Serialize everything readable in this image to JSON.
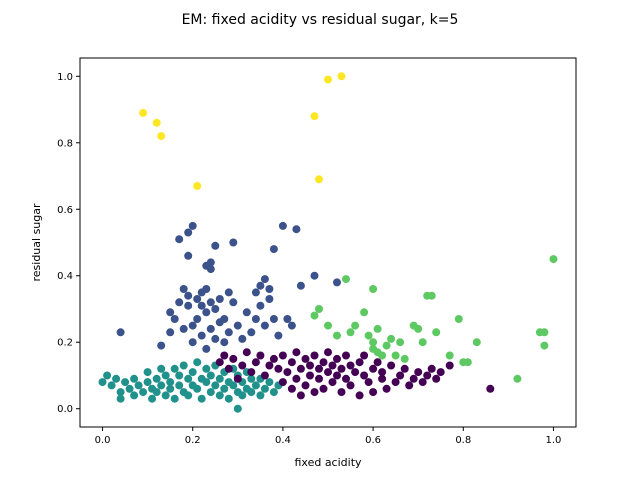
{
  "chart_data": {
    "type": "scatter",
    "title": "EM: fixed acidity vs residual sugar, k=5",
    "xlabel": "fixed acidity",
    "ylabel": "residual sugar",
    "xlim": [
      -0.05,
      1.05
    ],
    "ylim": [
      -0.055,
      1.055
    ],
    "xticks": [
      "0.0",
      "0.2",
      "0.4",
      "0.6",
      "0.8",
      "1.0"
    ],
    "yticks": [
      "0.0",
      "0.2",
      "0.4",
      "0.6",
      "0.8",
      "1.0"
    ],
    "grid": false,
    "legend": "none",
    "series": [
      {
        "color": "#fde725",
        "points": [
          [
            0.09,
            0.89
          ],
          [
            0.12,
            0.86
          ],
          [
            0.13,
            0.82
          ],
          [
            0.21,
            0.67
          ],
          [
            0.47,
            0.88
          ],
          [
            0.48,
            0.69
          ],
          [
            0.5,
            0.99
          ],
          [
            0.53,
            1.0
          ]
        ]
      },
      {
        "color": "#3b528b",
        "points": [
          [
            0.04,
            0.23
          ],
          [
            0.13,
            0.19
          ],
          [
            0.15,
            0.29
          ],
          [
            0.15,
            0.23
          ],
          [
            0.16,
            0.27
          ],
          [
            0.17,
            0.51
          ],
          [
            0.17,
            0.32
          ],
          [
            0.18,
            0.36
          ],
          [
            0.18,
            0.24
          ],
          [
            0.19,
            0.53
          ],
          [
            0.19,
            0.46
          ],
          [
            0.19,
            0.34
          ],
          [
            0.19,
            0.31
          ],
          [
            0.2,
            0.55
          ],
          [
            0.2,
            0.25
          ],
          [
            0.2,
            0.2
          ],
          [
            0.21,
            0.33
          ],
          [
            0.21,
            0.27
          ],
          [
            0.22,
            0.35
          ],
          [
            0.22,
            0.31
          ],
          [
            0.22,
            0.22
          ],
          [
            0.23,
            0.43
          ],
          [
            0.23,
            0.36
          ],
          [
            0.23,
            0.29
          ],
          [
            0.23,
            0.18
          ],
          [
            0.24,
            0.44
          ],
          [
            0.24,
            0.42
          ],
          [
            0.24,
            0.32
          ],
          [
            0.24,
            0.24
          ],
          [
            0.25,
            0.49
          ],
          [
            0.25,
            0.3
          ],
          [
            0.25,
            0.21
          ],
          [
            0.26,
            0.33
          ],
          [
            0.26,
            0.26
          ],
          [
            0.27,
            0.27
          ],
          [
            0.27,
            0.2
          ],
          [
            0.28,
            0.35
          ],
          [
            0.28,
            0.23
          ],
          [
            0.29,
            0.5
          ],
          [
            0.29,
            0.32
          ],
          [
            0.3,
            0.25
          ],
          [
            0.31,
            0.21
          ],
          [
            0.32,
            0.29
          ],
          [
            0.33,
            0.23
          ],
          [
            0.34,
            0.35
          ],
          [
            0.34,
            0.27
          ],
          [
            0.35,
            0.37
          ],
          [
            0.35,
            0.31
          ],
          [
            0.36,
            0.39
          ],
          [
            0.36,
            0.25
          ],
          [
            0.37,
            0.36
          ],
          [
            0.37,
            0.33
          ],
          [
            0.38,
            0.48
          ],
          [
            0.38,
            0.27
          ],
          [
            0.39,
            0.22
          ],
          [
            0.4,
            0.55
          ],
          [
            0.41,
            0.27
          ],
          [
            0.43,
            0.54
          ],
          [
            0.42,
            0.25
          ],
          [
            0.44,
            0.37
          ],
          [
            0.47,
            0.4
          ],
          [
            0.52,
            0.38
          ]
        ]
      },
      {
        "color": "#5ec962",
        "points": [
          [
            0.47,
            0.28
          ],
          [
            0.48,
            0.3
          ],
          [
            0.5,
            0.25
          ],
          [
            0.52,
            0.22
          ],
          [
            0.54,
            0.39
          ],
          [
            0.55,
            0.23
          ],
          [
            0.56,
            0.25
          ],
          [
            0.58,
            0.29
          ],
          [
            0.59,
            0.22
          ],
          [
            0.6,
            0.36
          ],
          [
            0.6,
            0.2
          ],
          [
            0.6,
            0.18
          ],
          [
            0.61,
            0.24
          ],
          [
            0.61,
            0.17
          ],
          [
            0.62,
            0.16
          ],
          [
            0.63,
            0.19
          ],
          [
            0.64,
            0.21
          ],
          [
            0.65,
            0.16
          ],
          [
            0.66,
            0.2
          ],
          [
            0.67,
            0.15
          ],
          [
            0.69,
            0.25
          ],
          [
            0.7,
            0.24
          ],
          [
            0.71,
            0.2
          ],
          [
            0.72,
            0.34
          ],
          [
            0.73,
            0.34
          ],
          [
            0.74,
            0.23
          ],
          [
            0.77,
            0.16
          ],
          [
            0.79,
            0.27
          ],
          [
            0.8,
            0.14
          ],
          [
            0.81,
            0.14
          ],
          [
            0.83,
            0.2
          ],
          [
            0.92,
            0.09
          ],
          [
            0.97,
            0.23
          ],
          [
            0.98,
            0.23
          ],
          [
            0.98,
            0.19
          ],
          [
            1.0,
            0.45
          ]
        ]
      },
      {
        "color": "#21918c",
        "points": [
          [
            0.0,
            0.08
          ],
          [
            0.01,
            0.1
          ],
          [
            0.02,
            0.07
          ],
          [
            0.03,
            0.09
          ],
          [
            0.04,
            0.05
          ],
          [
            0.04,
            0.03
          ],
          [
            0.05,
            0.08
          ],
          [
            0.06,
            0.06
          ],
          [
            0.07,
            0.09
          ],
          [
            0.07,
            0.04
          ],
          [
            0.08,
            0.07
          ],
          [
            0.09,
            0.05
          ],
          [
            0.1,
            0.11
          ],
          [
            0.1,
            0.08
          ],
          [
            0.11,
            0.06
          ],
          [
            0.11,
            0.03
          ],
          [
            0.12,
            0.09
          ],
          [
            0.12,
            0.05
          ],
          [
            0.13,
            0.07
          ],
          [
            0.13,
            0.12
          ],
          [
            0.14,
            0.04
          ],
          [
            0.14,
            0.1
          ],
          [
            0.15,
            0.06
          ],
          [
            0.15,
            0.08
          ],
          [
            0.16,
            0.12
          ],
          [
            0.16,
            0.03
          ],
          [
            0.17,
            0.07
          ],
          [
            0.17,
            0.1
          ],
          [
            0.18,
            0.05
          ],
          [
            0.18,
            0.13
          ],
          [
            0.19,
            0.09
          ],
          [
            0.19,
            0.04
          ],
          [
            0.2,
            0.07
          ],
          [
            0.2,
            0.11
          ],
          [
            0.21,
            0.06
          ],
          [
            0.21,
            0.14
          ],
          [
            0.22,
            0.03
          ],
          [
            0.22,
            0.09
          ],
          [
            0.23,
            0.08
          ],
          [
            0.23,
            0.12
          ],
          [
            0.24,
            0.05
          ],
          [
            0.24,
            0.1
          ],
          [
            0.25,
            0.07
          ],
          [
            0.25,
            0.13
          ],
          [
            0.26,
            0.04
          ],
          [
            0.26,
            0.09
          ],
          [
            0.27,
            0.11
          ],
          [
            0.27,
            0.06
          ],
          [
            0.28,
            0.08
          ],
          [
            0.28,
            0.03
          ],
          [
            0.29,
            0.12
          ],
          [
            0.29,
            0.07
          ],
          [
            0.3,
            0.05
          ],
          [
            0.3,
            0.1
          ],
          [
            0.31,
            0.08
          ],
          [
            0.31,
            0.04
          ],
          [
            0.32,
            0.06
          ],
          [
            0.32,
            0.11
          ],
          [
            0.33,
            0.09
          ],
          [
            0.33,
            0.05
          ],
          [
            0.34,
            0.07
          ],
          [
            0.35,
            0.04
          ],
          [
            0.35,
            0.09
          ],
          [
            0.36,
            0.06
          ],
          [
            0.37,
            0.08
          ],
          [
            0.38,
            0.05
          ],
          [
            0.39,
            0.07
          ],
          [
            0.3,
            0.0
          ]
        ]
      },
      {
        "color": "#440154",
        "points": [
          [
            0.26,
            0.14
          ],
          [
            0.27,
            0.16
          ],
          [
            0.28,
            0.12
          ],
          [
            0.29,
            0.15
          ],
          [
            0.3,
            0.09
          ],
          [
            0.31,
            0.13
          ],
          [
            0.32,
            0.17
          ],
          [
            0.33,
            0.11
          ],
          [
            0.34,
            0.14
          ],
          [
            0.35,
            0.16
          ],
          [
            0.36,
            0.1
          ],
          [
            0.37,
            0.13
          ],
          [
            0.38,
            0.15
          ],
          [
            0.39,
            0.12
          ],
          [
            0.4,
            0.16
          ],
          [
            0.4,
            0.08
          ],
          [
            0.41,
            0.11
          ],
          [
            0.42,
            0.14
          ],
          [
            0.42,
            0.06
          ],
          [
            0.43,
            0.17
          ],
          [
            0.43,
            0.09
          ],
          [
            0.44,
            0.12
          ],
          [
            0.44,
            0.04
          ],
          [
            0.45,
            0.15
          ],
          [
            0.45,
            0.07
          ],
          [
            0.46,
            0.1
          ],
          [
            0.46,
            0.13
          ],
          [
            0.47,
            0.05
          ],
          [
            0.47,
            0.16
          ],
          [
            0.48,
            0.09
          ],
          [
            0.48,
            0.12
          ],
          [
            0.49,
            0.14
          ],
          [
            0.49,
            0.06
          ],
          [
            0.5,
            0.11
          ],
          [
            0.5,
            0.17
          ],
          [
            0.51,
            0.08
          ],
          [
            0.51,
            0.13
          ],
          [
            0.52,
            0.1
          ],
          [
            0.52,
            0.15
          ],
          [
            0.53,
            0.05
          ],
          [
            0.53,
            0.12
          ],
          [
            0.54,
            0.09
          ],
          [
            0.54,
            0.16
          ],
          [
            0.55,
            0.07
          ],
          [
            0.55,
            0.13
          ],
          [
            0.56,
            0.11
          ],
          [
            0.57,
            0.14
          ],
          [
            0.57,
            0.04
          ],
          [
            0.58,
            0.1
          ],
          [
            0.58,
            0.16
          ],
          [
            0.59,
            0.08
          ],
          [
            0.6,
            0.12
          ],
          [
            0.6,
            0.05
          ],
          [
            0.61,
            0.14
          ],
          [
            0.62,
            0.09
          ],
          [
            0.62,
            0.11
          ],
          [
            0.63,
            0.06
          ],
          [
            0.64,
            0.13
          ],
          [
            0.65,
            0.08
          ],
          [
            0.66,
            0.1
          ],
          [
            0.67,
            0.12
          ],
          [
            0.68,
            0.07
          ],
          [
            0.69,
            0.09
          ],
          [
            0.7,
            0.11
          ],
          [
            0.71,
            0.08
          ],
          [
            0.72,
            0.1
          ],
          [
            0.73,
            0.12
          ],
          [
            0.74,
            0.09
          ],
          [
            0.75,
            0.11
          ],
          [
            0.77,
            0.13
          ],
          [
            0.86,
            0.06
          ]
        ]
      }
    ]
  }
}
